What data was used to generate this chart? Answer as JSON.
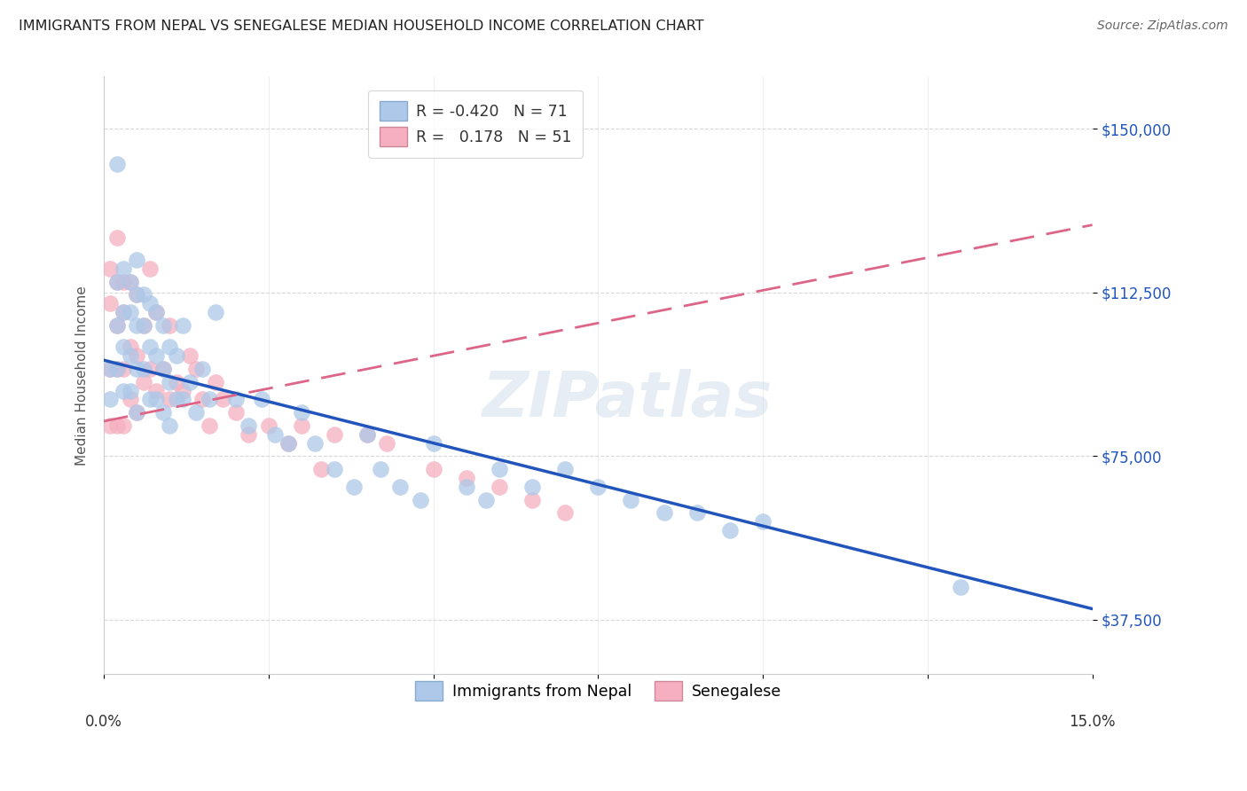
{
  "title": "IMMIGRANTS FROM NEPAL VS SENEGALESE MEDIAN HOUSEHOLD INCOME CORRELATION CHART",
  "source": "Source: ZipAtlas.com",
  "ylabel": "Median Household Income",
  "yticks": [
    37500,
    75000,
    112500,
    150000
  ],
  "ytick_labels": [
    "$37,500",
    "$75,000",
    "$112,500",
    "$150,000"
  ],
  "xlim": [
    0.0,
    0.15
  ],
  "ylim": [
    25000,
    162000
  ],
  "legend_nepal_r": "-0.420",
  "legend_nepal_n": "71",
  "legend_senegal_r": "0.178",
  "legend_senegal_n": "51",
  "nepal_color": "#adc8e8",
  "senegal_color": "#f5afc0",
  "nepal_line_color": "#2255bb",
  "senegal_line_color": "#dd6688",
  "watermark": "ZIPatlas",
  "nepal_scatter_x": [
    0.001,
    0.001,
    0.002,
    0.002,
    0.002,
    0.002,
    0.003,
    0.003,
    0.003,
    0.003,
    0.004,
    0.004,
    0.004,
    0.004,
    0.005,
    0.005,
    0.005,
    0.005,
    0.005,
    0.006,
    0.006,
    0.006,
    0.007,
    0.007,
    0.007,
    0.008,
    0.008,
    0.008,
    0.009,
    0.009,
    0.009,
    0.01,
    0.01,
    0.01,
    0.011,
    0.011,
    0.012,
    0.012,
    0.013,
    0.014,
    0.015,
    0.016,
    0.017,
    0.02,
    0.022,
    0.024,
    0.026,
    0.028,
    0.03,
    0.032,
    0.035,
    0.038,
    0.04,
    0.042,
    0.045,
    0.048,
    0.05,
    0.055,
    0.058,
    0.06,
    0.065,
    0.07,
    0.075,
    0.08,
    0.085,
    0.09,
    0.095,
    0.1,
    0.13
  ],
  "nepal_scatter_y": [
    95000,
    88000,
    142000,
    115000,
    105000,
    95000,
    118000,
    108000,
    100000,
    90000,
    115000,
    108000,
    98000,
    90000,
    120000,
    112000,
    105000,
    95000,
    85000,
    112000,
    105000,
    95000,
    110000,
    100000,
    88000,
    108000,
    98000,
    88000,
    105000,
    95000,
    85000,
    100000,
    92000,
    82000,
    98000,
    88000,
    105000,
    88000,
    92000,
    85000,
    95000,
    88000,
    108000,
    88000,
    82000,
    88000,
    80000,
    78000,
    85000,
    78000,
    72000,
    68000,
    80000,
    72000,
    68000,
    65000,
    78000,
    68000,
    65000,
    72000,
    68000,
    72000,
    68000,
    65000,
    62000,
    62000,
    58000,
    60000,
    45000
  ],
  "senegal_scatter_x": [
    0.001,
    0.001,
    0.001,
    0.001,
    0.002,
    0.002,
    0.002,
    0.002,
    0.002,
    0.003,
    0.003,
    0.003,
    0.003,
    0.004,
    0.004,
    0.004,
    0.005,
    0.005,
    0.005,
    0.006,
    0.006,
    0.007,
    0.007,
    0.008,
    0.008,
    0.009,
    0.01,
    0.01,
    0.011,
    0.012,
    0.013,
    0.014,
    0.015,
    0.016,
    0.017,
    0.018,
    0.02,
    0.022,
    0.025,
    0.028,
    0.03,
    0.033,
    0.035,
    0.04,
    0.043,
    0.05,
    0.055,
    0.06,
    0.065,
    0.07
  ],
  "senegal_scatter_y": [
    118000,
    110000,
    95000,
    82000,
    125000,
    115000,
    105000,
    95000,
    82000,
    115000,
    108000,
    95000,
    82000,
    115000,
    100000,
    88000,
    112000,
    98000,
    85000,
    105000,
    92000,
    118000,
    95000,
    108000,
    90000,
    95000,
    105000,
    88000,
    92000,
    90000,
    98000,
    95000,
    88000,
    82000,
    92000,
    88000,
    85000,
    80000,
    82000,
    78000,
    82000,
    72000,
    80000,
    80000,
    78000,
    72000,
    70000,
    68000,
    65000,
    62000
  ],
  "nepal_line_x": [
    0.0,
    0.15
  ],
  "nepal_line_y": [
    97000,
    40000
  ],
  "senegal_line_x": [
    0.0,
    0.15
  ],
  "senegal_line_y": [
    83000,
    128000
  ]
}
